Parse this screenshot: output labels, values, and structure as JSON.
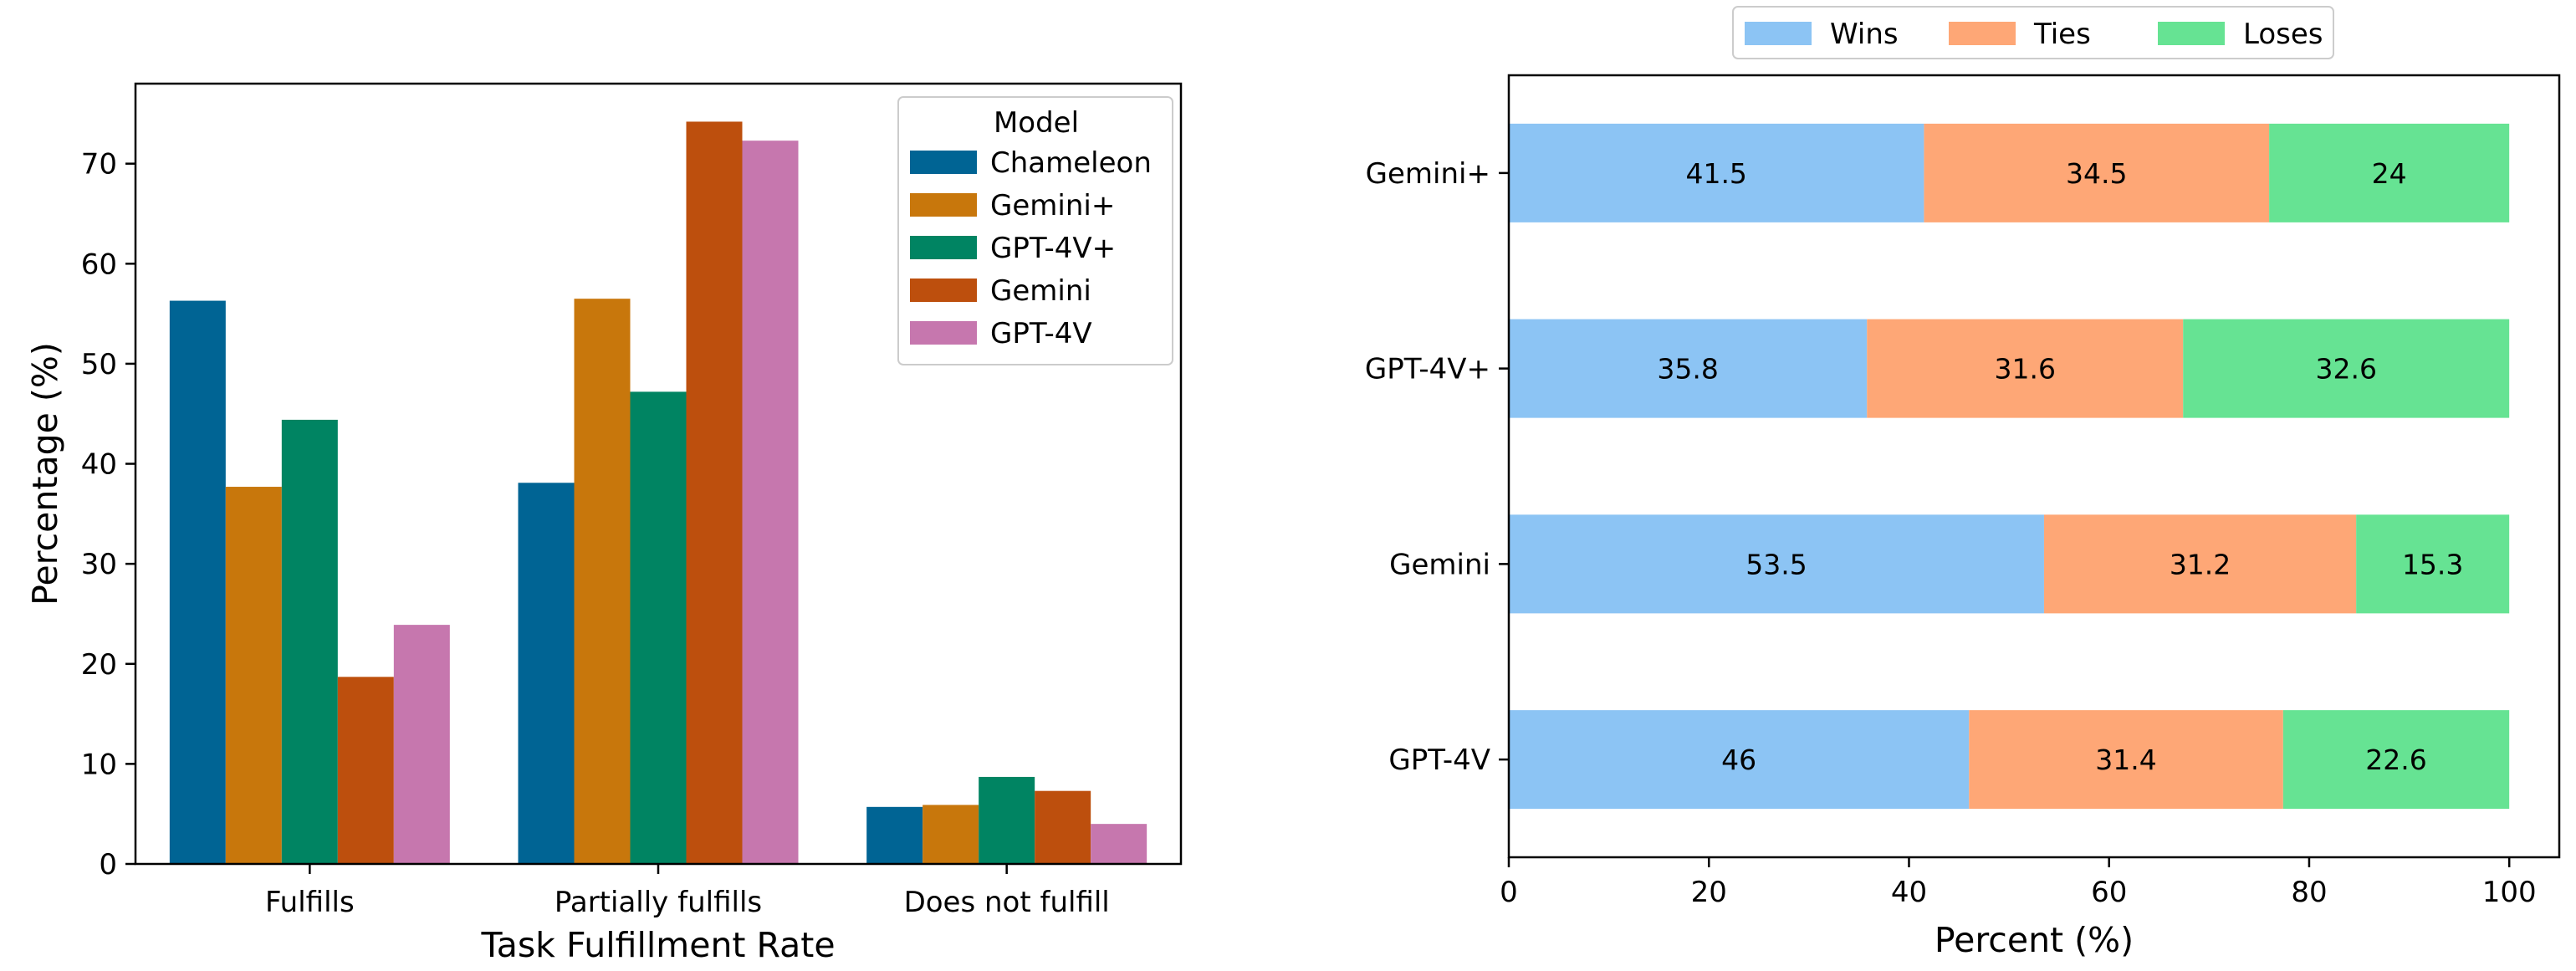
{
  "chart_data": [
    {
      "type": "bar",
      "xlabel": "Task Fulfillment Rate",
      "ylabel": "Percentage (%)",
      "ylim": [
        0,
        78
      ],
      "yticks": [
        0,
        10,
        20,
        30,
        40,
        50,
        60,
        70
      ],
      "categories": [
        "Fulfills",
        "Partially fulfills",
        "Does not fulfill"
      ],
      "legend": {
        "title": "Model",
        "placement": "upper right"
      },
      "grid": false,
      "series": [
        {
          "name": "Chameleon",
          "color": "#006494",
          "values": [
            56.3,
            38.1,
            5.7
          ]
        },
        {
          "name": "Gemini+",
          "color": "#c8770c",
          "values": [
            37.7,
            56.5,
            5.9
          ]
        },
        {
          "name": "GPT-4V+",
          "color": "#008462",
          "values": [
            44.4,
            47.2,
            8.7
          ]
        },
        {
          "name": "Gemini",
          "color": "#bd4f0d",
          "values": [
            18.7,
            74.2,
            7.3
          ]
        },
        {
          "name": "GPT-4V",
          "color": "#c677ae",
          "values": [
            23.9,
            72.3,
            4.0
          ]
        }
      ]
    },
    {
      "type": "bar",
      "orientation": "horizontal",
      "stacked": true,
      "xlabel": "Percent (%)",
      "xlim": [
        0,
        105
      ],
      "xticks": [
        0,
        20,
        40,
        60,
        80,
        100
      ],
      "categories": [
        "Gemini+",
        "GPT-4V+",
        "Gemini",
        "GPT-4V"
      ],
      "legend": {
        "placement": "top center, outside"
      },
      "grid": false,
      "series": [
        {
          "name": "Wins",
          "color": "#8cc4f4",
          "values": [
            41.5,
            35.8,
            53.5,
            46.0
          ]
        },
        {
          "name": "Ties",
          "color": "#fea776",
          "values": [
            34.5,
            31.6,
            31.2,
            31.4
          ]
        },
        {
          "name": "Loses",
          "color": "#66e393",
          "values": [
            24.0,
            32.6,
            15.3,
            22.6
          ]
        }
      ]
    }
  ]
}
